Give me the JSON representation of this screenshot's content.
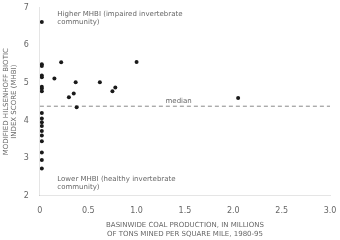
{
  "chart_data": {
    "type": "scatter",
    "x": [
      0.02,
      0.02,
      0.02,
      0.02,
      0.02,
      0.02,
      0.02,
      0.02,
      0.02,
      0.02,
      0.02,
      0.02,
      0.02,
      0.02,
      0.02,
      0.02,
      0.02,
      0.02,
      0.15,
      0.22,
      0.3,
      0.35,
      0.37,
      0.38,
      0.62,
      0.75,
      0.78,
      1.0,
      2.05
    ],
    "values": [
      6.62,
      5.5,
      5.45,
      5.2,
      5.15,
      4.9,
      4.85,
      4.78,
      4.2,
      4.05,
      3.95,
      3.85,
      3.72,
      3.6,
      3.45,
      3.15,
      2.95,
      2.72,
      5.12,
      5.55,
      4.62,
      4.72,
      5.02,
      4.35,
      5.02,
      4.78,
      4.88,
      5.56,
      4.6
    ],
    "color": "#1a1a1a",
    "xlabel": "BASINWIDE COAL PRODUCTION, IN MILLIONS\nOF TONS MINED PER SQUARE MILE, 1980-95",
    "ylabel": "MODIFIED HILSENHOFF BIOTIC\nINDEX SCORE (MHBI)",
    "xlim": [
      0,
      3.0
    ],
    "ylim": [
      2,
      7
    ],
    "xticks": [
      0,
      0.5,
      {
        "value": 1.0,
        "label": "1.0"
      },
      {
        "value": 1.5,
        "label": "1.5"
      },
      {
        "value": 2.0,
        "label": "2.0"
      },
      {
        "value": 2.5,
        "label": "2.5"
      },
      {
        "value": 3.0,
        "label": "3.0"
      }
    ],
    "yticks": [
      2,
      3,
      4,
      5,
      6,
      7
    ],
    "grid": false,
    "reference_lines": [
      {
        "y": 4.38,
        "label": "median",
        "color": "#888888",
        "line_style": "dashed"
      }
    ],
    "annotations": [
      "Higher MHBI (impaired invertebrate\ncommunity)",
      "Lower MHBI (healthy invertebrate\ncommunity)"
    ]
  }
}
